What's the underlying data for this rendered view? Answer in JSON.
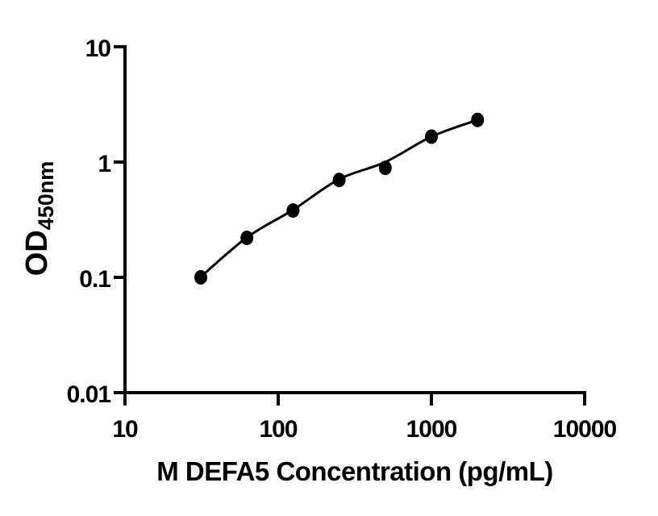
{
  "figure": {
    "background": "#ffffff",
    "ink_color": "#000000"
  },
  "chart_data": {
    "type": "scatter",
    "subtype": "elisa-standard-curve",
    "title": "",
    "xlabel": "M DEFA5 Concentration (pg/mL)",
    "ylabel": "OD",
    "ylabel_subscript": "450nm",
    "x_scale": "log10",
    "y_scale": "log10",
    "xlim": [
      10,
      10000
    ],
    "ylim": [
      0.01,
      10
    ],
    "x_ticks": [
      "10",
      "100",
      "1000",
      "10000"
    ],
    "y_ticks": [
      "10",
      "1",
      "0.1",
      "0.01"
    ],
    "grid": false,
    "legend": "none",
    "x": [
      31.25,
      62.5,
      125,
      250,
      500,
      1000,
      2000
    ],
    "od": [
      0.1,
      0.22,
      0.38,
      0.7,
      0.89,
      1.66,
      2.32
    ],
    "fit_od": [
      0.101,
      0.222,
      0.385,
      0.71,
      1.0,
      1.66,
      2.32
    ],
    "marker": "filled-circle",
    "marker_color": "#000000",
    "line_color": "#000000"
  }
}
